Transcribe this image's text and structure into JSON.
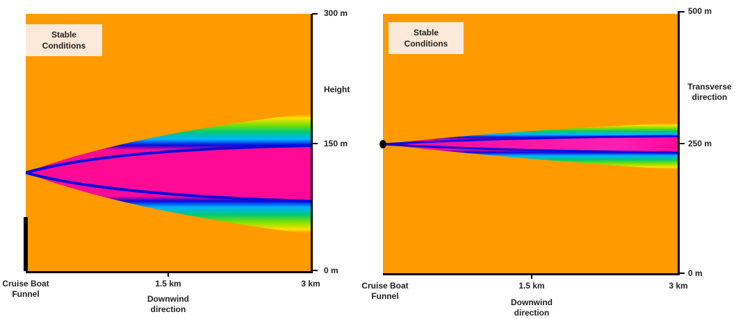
{
  "left_panel": {
    "condition_label": "Stable Conditions",
    "x_axis": {
      "ticks": [
        "Cruise Boat Funnel",
        "1.5 km",
        "3 km"
      ],
      "label": "Downwind direction"
    },
    "y_axis": {
      "ticks": [
        "300 m",
        "150 m",
        "0 m"
      ],
      "label": "Height"
    }
  },
  "right_panel": {
    "condition_label": "Stable Conditions",
    "x_axis": {
      "ticks": [
        "Cruise Boat Funnel",
        "1.5 km",
        "3 km"
      ],
      "label": "Downwind direction"
    },
    "y_axis": {
      "ticks": [
        "500 m",
        "250 m",
        "0 m"
      ],
      "label": "Transverse direction"
    }
  },
  "colors": {
    "background": "#ff9b00",
    "core": "#ff0a96",
    "edge": "#0a0adc"
  }
}
